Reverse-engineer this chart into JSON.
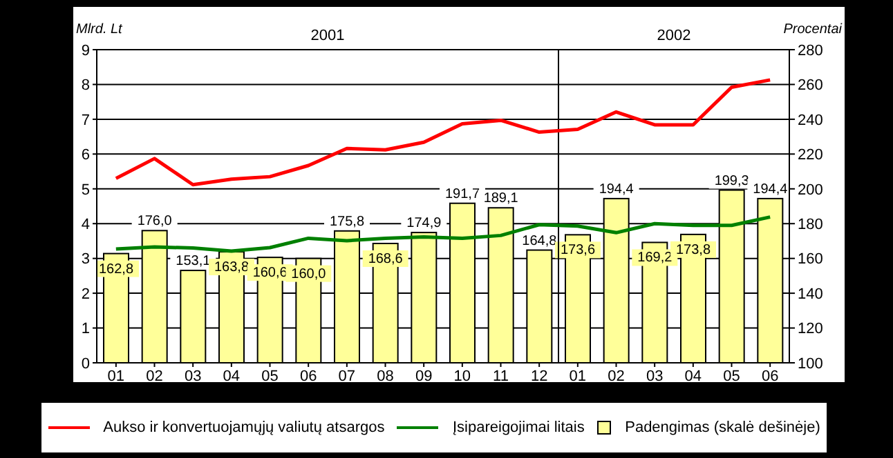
{
  "chart_data": {
    "type": "line",
    "ylabel": "Mlrd. Lt",
    "y2label": "Procentai",
    "annotations": [
      "2001",
      "2002"
    ],
    "categories": [
      "01",
      "02",
      "03",
      "04",
      "05",
      "06",
      "07",
      "08",
      "09",
      "10",
      "11",
      "12",
      "01",
      "02",
      "03",
      "04",
      "05",
      "06"
    ],
    "series": [
      {
        "name": "Aukso ir konvertuojamųjų valiutų atsargos",
        "color": "#ff0000",
        "values": [
          5.3,
          5.87,
          5.12,
          5.28,
          5.35,
          5.67,
          6.16,
          6.12,
          6.34,
          6.87,
          6.97,
          6.63,
          6.71,
          7.21,
          6.84,
          6.84,
          7.92,
          8.13
        ]
      },
      {
        "name": "Įsipareigojimai litais",
        "color": "#008000",
        "values": [
          3.27,
          3.33,
          3.3,
          3.21,
          3.31,
          3.58,
          3.51,
          3.58,
          3.62,
          3.58,
          3.66,
          3.97,
          3.93,
          3.74,
          4.0,
          3.95,
          3.95,
          4.19
        ]
      },
      {
        "name": "Padengimas (skalė dešinėje)",
        "type": "bar",
        "axis": "y2",
        "color": "#ffff99",
        "values": [
          162.8,
          176.0,
          153.1,
          163.8,
          160.6,
          160.0,
          175.8,
          168.6,
          174.9,
          191.7,
          189.1,
          164.8,
          173.6,
          194.4,
          169.2,
          173.8,
          199.3,
          194.4
        ],
        "value_labels": [
          "162,8",
          "176,0",
          "153,1",
          "163,8",
          "160,6",
          "160,0",
          "175,8",
          "168,6",
          "174,9",
          "191,7",
          "189,1",
          "164,8",
          "173,6",
          "194,4",
          "169,2",
          "173,8",
          "199,3",
          "194,4"
        ]
      }
    ],
    "ylim": [
      0,
      9
    ],
    "yticks": [
      0,
      1,
      2,
      3,
      4,
      5,
      6,
      7,
      8,
      9
    ],
    "y2lim": [
      100,
      280
    ],
    "y2ticks": [
      100,
      120,
      140,
      160,
      180,
      200,
      220,
      240,
      260,
      280
    ],
    "grid": "y",
    "legend": "bottom",
    "marker": "none",
    "line_style": "solid"
  }
}
